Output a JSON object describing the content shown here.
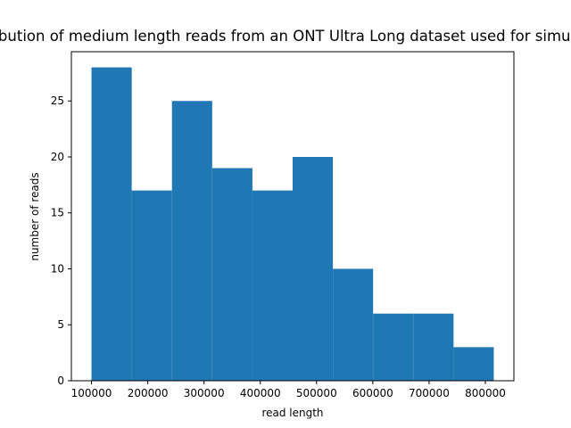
{
  "chart_data": {
    "type": "bar",
    "title": "Distribution of medium length reads from an ONT Ultra Long dataset used for simulation",
    "xlabel": "read length",
    "ylabel": "number of reads",
    "bar_color": "#1f77b4",
    "bins": [
      {
        "x0": 100000,
        "x1": 171500,
        "count": 28
      },
      {
        "x0": 171500,
        "x1": 243000,
        "count": 17
      },
      {
        "x0": 243000,
        "x1": 314500,
        "count": 25
      },
      {
        "x0": 314500,
        "x1": 386000,
        "count": 19
      },
      {
        "x0": 386000,
        "x1": 457500,
        "count": 17
      },
      {
        "x0": 457500,
        "x1": 529000,
        "count": 20
      },
      {
        "x0": 529000,
        "x1": 600500,
        "count": 10
      },
      {
        "x0": 600500,
        "x1": 672000,
        "count": 6
      },
      {
        "x0": 672000,
        "x1": 743500,
        "count": 6
      },
      {
        "x0": 743500,
        "x1": 815000,
        "count": 3
      }
    ],
    "xlim": [
      64250,
      850750
    ],
    "ylim": [
      0,
      29.4
    ],
    "xticks": [
      100000,
      200000,
      300000,
      400000,
      500000,
      600000,
      700000,
      800000
    ],
    "xtick_labels": [
      "100000",
      "200000",
      "300000",
      "400000",
      "500000",
      "600000",
      "700000",
      "800000"
    ],
    "yticks": [
      0,
      5,
      10,
      15,
      20,
      25
    ],
    "ytick_labels": [
      "0",
      "5",
      "10",
      "15",
      "20",
      "25"
    ],
    "grid": false,
    "legend": "none"
  }
}
